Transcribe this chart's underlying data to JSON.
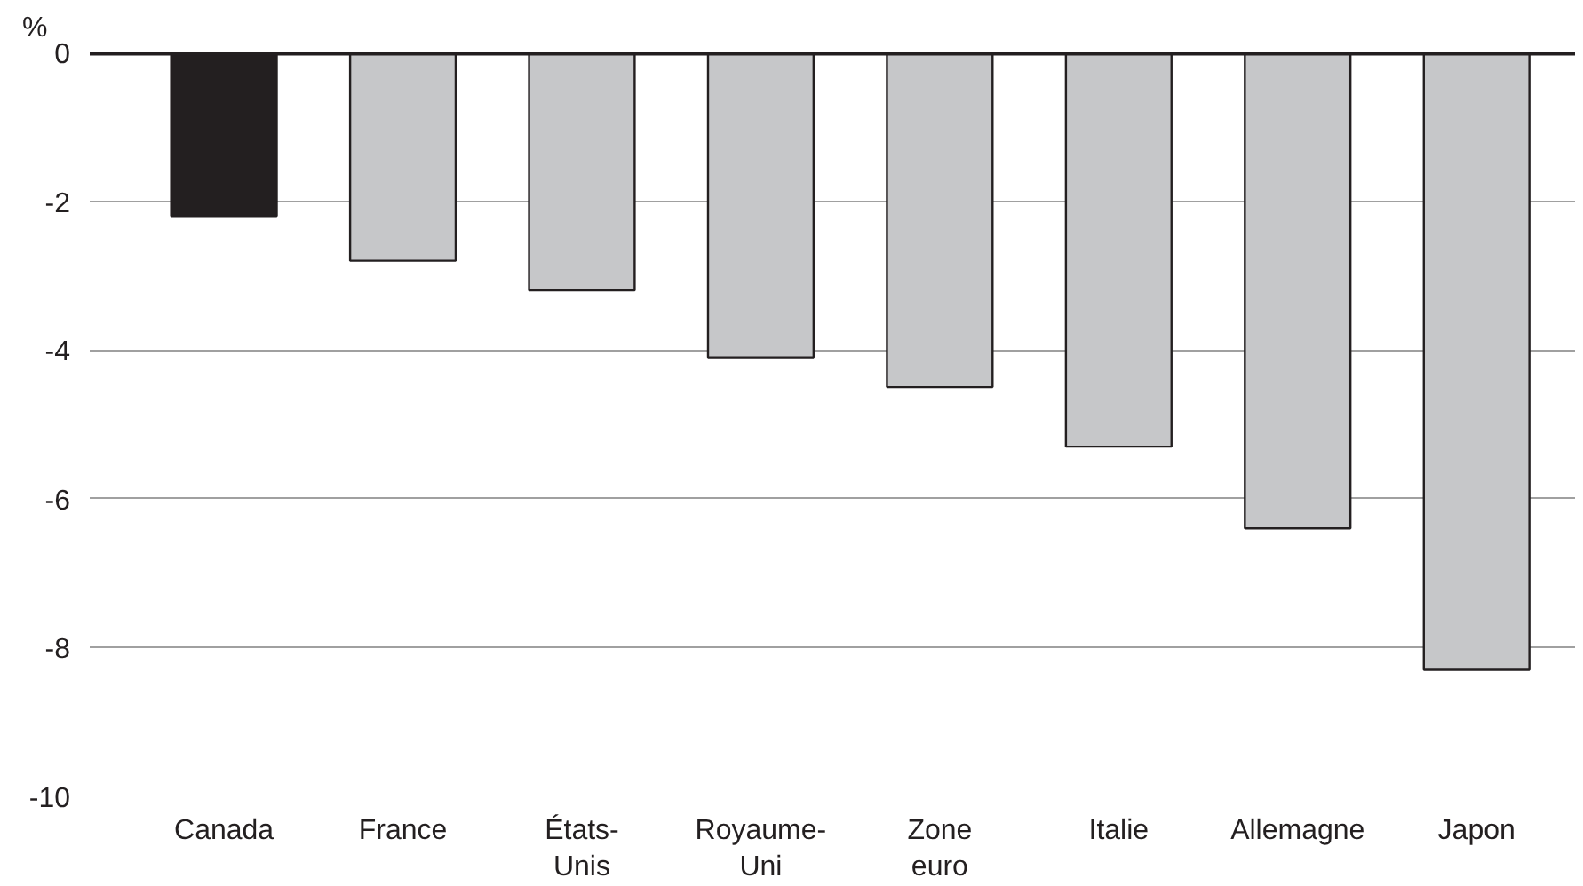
{
  "chart_data": {
    "type": "bar",
    "ylabel": "%",
    "categories": [
      "Canada",
      "France",
      "États-\nUnis",
      "Royaume-\nUni",
      "Zone\neuro",
      "Italie",
      "Allemagne",
      "Japon"
    ],
    "values": [
      -2.2,
      -2.8,
      -3.2,
      -4.1,
      -4.5,
      -5.3,
      -6.4,
      -8.3
    ],
    "colors": [
      "#231f20",
      "#c6c7c9",
      "#c6c7c9",
      "#c6c7c9",
      "#c6c7c9",
      "#c6c7c9",
      "#c6c7c9",
      "#c6c7c9"
    ],
    "ylim": [
      -10,
      0
    ],
    "yticks": [
      0,
      -2,
      -4,
      -6,
      -8,
      -10
    ],
    "grid": "y",
    "ref_lines": [
      {
        "axis": "y",
        "value": 0,
        "color": "#231f20"
      }
    ]
  }
}
